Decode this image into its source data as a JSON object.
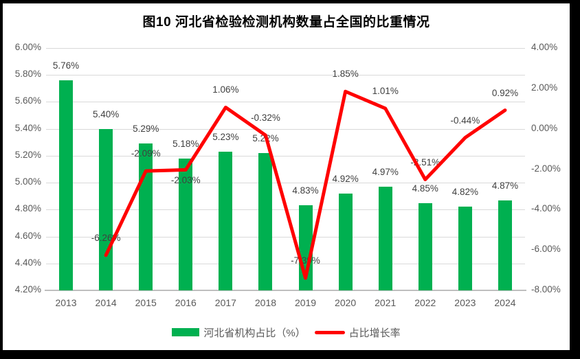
{
  "title": "图10  河北省检验检测机构数量占全国的比重情况",
  "legend": {
    "bar_label": "河北省机构占比（%）",
    "line_label": "占比增长率"
  },
  "colors": {
    "bar": "#00B050",
    "line": "#FF0000",
    "gridline": "#D9D9D9",
    "axis_line": "#BFBFBF",
    "tick_text": "#595959",
    "data_label_text": "#404040",
    "frame": "#000000",
    "canvas": "#FFFFFF"
  },
  "chart_data": {
    "type": "bar+line combo",
    "title": "图10  河北省检验检测机构数量占全国的比重情况",
    "categories": [
      "2013",
      "2014",
      "2015",
      "2016",
      "2017",
      "2018",
      "2019",
      "2020",
      "2021",
      "2022",
      "2023",
      "2024"
    ],
    "series": [
      {
        "name": "河北省机构占比（%）",
        "type": "bar",
        "axis": "left",
        "color": "#00B050",
        "values": [
          5.76,
          5.4,
          5.29,
          5.18,
          5.23,
          5.22,
          4.83,
          4.92,
          4.97,
          4.85,
          4.82,
          4.87
        ],
        "labels": [
          "5.76%",
          "5.40%",
          "5.29%",
          "5.18%",
          "5.23%",
          "5.22%",
          "4.83%",
          "4.92%",
          "4.97%",
          "4.85%",
          "4.82%",
          "4.87%"
        ]
      },
      {
        "name": "占比增长率",
        "type": "line",
        "axis": "right",
        "color": "#FF0000",
        "values": [
          null,
          -6.26,
          -2.09,
          -2.03,
          1.06,
          -0.32,
          -7.39,
          1.85,
          1.01,
          -2.51,
          -0.44,
          0.92
        ],
        "labels": [
          null,
          "-6.26%",
          "-2.09%",
          "-2.03%",
          "1.06%",
          "-0.32%",
          "-7.39%",
          "1.85%",
          "1.01%",
          "-2.51%",
          "-0.44%",
          "0.92%"
        ],
        "label_placement": [
          null,
          "above",
          "above",
          "below",
          "above",
          "above",
          "above",
          "above",
          "above",
          "above",
          "above",
          "above"
        ]
      }
    ],
    "left_axis": {
      "min": 4.2,
      "max": 6.0,
      "step": 0.2,
      "tick_values": [
        6.0,
        5.8,
        5.6,
        5.4,
        5.2,
        5.0,
        4.8,
        4.6,
        4.4,
        4.2
      ],
      "tick_labels": [
        "6.00%",
        "5.80%",
        "5.60%",
        "5.40%",
        "5.20%",
        "5.00%",
        "4.80%",
        "4.60%",
        "4.40%",
        "4.20%"
      ]
    },
    "right_axis": {
      "min": -8,
      "max": 4,
      "step": 2,
      "tick_values": [
        4,
        2,
        0,
        -2,
        -4,
        -6,
        -8
      ],
      "tick_labels": [
        "4.00%",
        "2.00%",
        "0.00%",
        "-2.00%",
        "-4.00%",
        "-6.00%",
        "-8.00%"
      ]
    },
    "grid": true,
    "legend_position": "bottom"
  }
}
